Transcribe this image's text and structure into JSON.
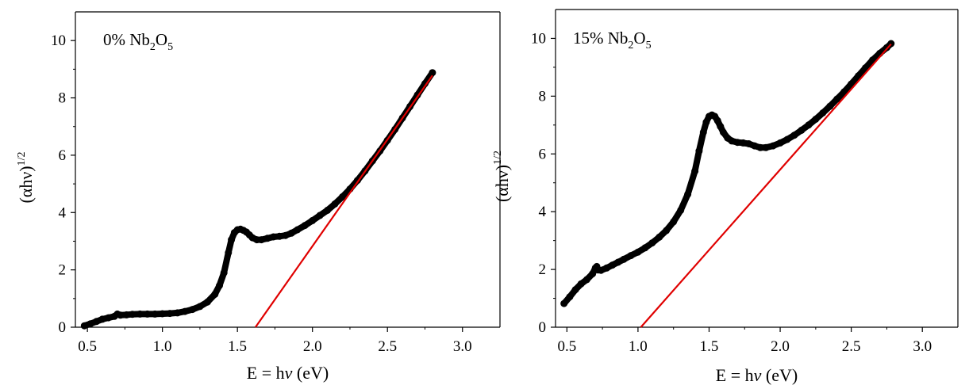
{
  "chart_data": [
    {
      "type": "scatter",
      "annotation": {
        "pre": "0% Nb",
        "sub1": "2",
        "mid": "O",
        "sub2": "5"
      },
      "xlabel": {
        "pre": "E = h",
        "italic": "ν",
        "post": " (eV)"
      },
      "ylabel": {
        "pre": "(αhν)",
        "sup": "1/2"
      },
      "xlim": [
        0.42,
        3.25
      ],
      "ylim": [
        0,
        11
      ],
      "xticks": [
        0.5,
        1.0,
        1.5,
        2.0,
        2.5,
        3.0
      ],
      "xtick_labels": [
        "0.5",
        "1.0",
        "1.5",
        "2.0",
        "2.5",
        "3.0"
      ],
      "yticks": [
        0,
        2,
        4,
        6,
        8,
        10
      ],
      "ytick_labels": [
        "0",
        "2",
        "4",
        "6",
        "8",
        "10"
      ],
      "grid": false,
      "series": [
        {
          "color": "#000000",
          "style": "markers",
          "x": [
            0.48,
            0.52,
            0.56,
            0.6,
            0.64,
            0.68,
            0.7,
            0.72,
            0.76,
            0.8,
            0.85,
            0.9,
            0.95,
            1.0,
            1.05,
            1.1,
            1.15,
            1.2,
            1.25,
            1.3,
            1.35,
            1.38,
            1.41,
            1.44,
            1.46,
            1.48,
            1.5,
            1.52,
            1.54,
            1.56,
            1.58,
            1.6,
            1.63,
            1.66,
            1.7,
            1.74,
            1.78,
            1.82,
            1.86,
            1.9,
            1.95,
            2.0,
            2.05,
            2.1,
            2.15,
            2.2,
            2.25,
            2.3,
            2.35,
            2.4,
            2.45,
            2.5,
            2.55,
            2.6,
            2.65,
            2.7,
            2.75,
            2.8
          ],
          "y": [
            0.05,
            0.12,
            0.2,
            0.28,
            0.33,
            0.38,
            0.46,
            0.42,
            0.43,
            0.45,
            0.46,
            0.46,
            0.46,
            0.47,
            0.48,
            0.5,
            0.55,
            0.62,
            0.72,
            0.88,
            1.15,
            1.45,
            1.9,
            2.6,
            3.05,
            3.3,
            3.4,
            3.42,
            3.38,
            3.32,
            3.22,
            3.12,
            3.05,
            3.05,
            3.1,
            3.15,
            3.17,
            3.2,
            3.28,
            3.4,
            3.55,
            3.72,
            3.9,
            4.08,
            4.3,
            4.55,
            4.82,
            5.12,
            5.45,
            5.8,
            6.15,
            6.52,
            6.9,
            7.3,
            7.7,
            8.1,
            8.5,
            8.88
          ]
        },
        {
          "color": "#e00000",
          "style": "line",
          "x": [
            1.62,
            2.8
          ],
          "y": [
            0,
            8.78
          ]
        }
      ]
    },
    {
      "type": "scatter",
      "annotation": {
        "pre": "15% Nb",
        "sub1": "2",
        "mid": "O",
        "sub2": "5"
      },
      "xlabel": {
        "pre": "E = h",
        "italic": "ν",
        "post": " (eV)"
      },
      "ylabel": {
        "pre": "(αhν)",
        "sup": "1/2"
      },
      "xlim": [
        0.42,
        3.25
      ],
      "ylim": [
        0,
        11
      ],
      "xticks": [
        0.5,
        1.0,
        1.5,
        2.0,
        2.5,
        3.0
      ],
      "xtick_labels": [
        "0.5",
        "1.0",
        "1.5",
        "2.0",
        "2.5",
        "3.0"
      ],
      "yticks": [
        0,
        2,
        4,
        6,
        8,
        10
      ],
      "ytick_labels": [
        "0",
        "2",
        "4",
        "6",
        "8",
        "10"
      ],
      "grid": false,
      "series": [
        {
          "color": "#000000",
          "style": "markers",
          "x": [
            0.48,
            0.52,
            0.56,
            0.6,
            0.64,
            0.68,
            0.7,
            0.71,
            0.72,
            0.74,
            0.78,
            0.82,
            0.86,
            0.9,
            0.95,
            1.0,
            1.05,
            1.1,
            1.15,
            1.2,
            1.25,
            1.3,
            1.35,
            1.4,
            1.43,
            1.46,
            1.48,
            1.5,
            1.52,
            1.54,
            1.56,
            1.58,
            1.6,
            1.63,
            1.66,
            1.7,
            1.74,
            1.78,
            1.82,
            1.86,
            1.9,
            1.95,
            2.0,
            2.05,
            2.1,
            2.15,
            2.2,
            2.25,
            2.3,
            2.35,
            2.4,
            2.45,
            2.5,
            2.55,
            2.6,
            2.65,
            2.7,
            2.75,
            2.78
          ],
          "y": [
            0.82,
            1.05,
            1.3,
            1.5,
            1.65,
            1.85,
            2.05,
            2.1,
            1.98,
            1.97,
            2.05,
            2.15,
            2.25,
            2.35,
            2.48,
            2.6,
            2.75,
            2.92,
            3.12,
            3.35,
            3.65,
            4.05,
            4.6,
            5.4,
            6.1,
            6.75,
            7.1,
            7.3,
            7.35,
            7.3,
            7.15,
            6.95,
            6.75,
            6.55,
            6.45,
            6.4,
            6.38,
            6.35,
            6.28,
            6.22,
            6.22,
            6.28,
            6.38,
            6.5,
            6.65,
            6.82,
            7.0,
            7.2,
            7.42,
            7.65,
            7.9,
            8.15,
            8.42,
            8.7,
            8.98,
            9.25,
            9.48,
            9.68,
            9.82
          ]
        },
        {
          "color": "#e00000",
          "style": "line",
          "x": [
            1.02,
            2.78
          ],
          "y": [
            0,
            9.8
          ]
        }
      ]
    }
  ]
}
